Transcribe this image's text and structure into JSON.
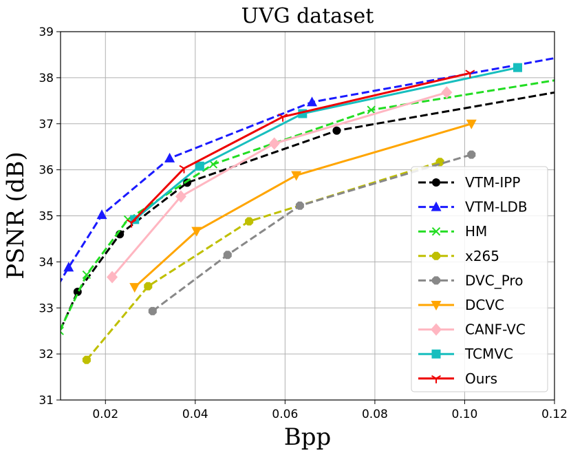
{
  "chart_data": {
    "type": "line",
    "title": "UVG dataset",
    "xlabel": "Bpp",
    "ylabel": "PSNR (dB)",
    "xlim": [
      0.01,
      0.12
    ],
    "ylim": [
      31,
      39
    ],
    "xticks": [
      0.02,
      0.04,
      0.06,
      0.08,
      0.1,
      0.12
    ],
    "xtick_labels": [
      "0.02",
      "0.04",
      "0.06",
      "0.08",
      "0.10",
      "0.12"
    ],
    "yticks": [
      31,
      32,
      33,
      34,
      35,
      36,
      37,
      38,
      39
    ],
    "ytick_labels": [
      "31",
      "32",
      "33",
      "34",
      "35",
      "36",
      "37",
      "38",
      "39"
    ],
    "grid": true,
    "legend_position": "lower-right",
    "series": [
      {
        "name": "VTM-IPP",
        "color": "#000000",
        "dash": "dashed",
        "marker": "circle",
        "x": [
          0.008,
          0.0138,
          0.0232,
          0.0382,
          0.0715,
          0.13
        ],
        "y": [
          32.1,
          33.35,
          34.6,
          35.72,
          36.85,
          37.85
        ],
        "mx": [
          0.0138,
          0.0232,
          0.0382,
          0.0715
        ]
      },
      {
        "name": "VTM-LDB",
        "color": "#1a1aff",
        "dash": "dashed",
        "marker": "triangle-up",
        "x": [
          0.0095,
          0.0118,
          0.0192,
          0.0343,
          0.066,
          0.13
        ],
        "y": [
          33.5,
          33.88,
          35.02,
          36.25,
          37.47,
          38.6
        ],
        "mx": [
          0.0118,
          0.0192,
          0.0343,
          0.066
        ]
      },
      {
        "name": "HM",
        "color": "#22dd22",
        "dash": "dashed",
        "marker": "x",
        "x": [
          0.0098,
          0.0158,
          0.025,
          0.044,
          0.0792,
          0.13
        ],
        "y": [
          32.5,
          33.72,
          34.92,
          36.12,
          37.3,
          38.1
        ],
        "mx": [
          0.0098,
          0.0158,
          0.025,
          0.044,
          0.0792
        ]
      },
      {
        "name": "x265",
        "color": "#bfbf00",
        "dash": "dashed",
        "marker": "octagon",
        "x": [
          0.0158,
          0.0295,
          0.052,
          0.0945
        ],
        "y": [
          31.87,
          33.47,
          34.88,
          36.17
        ],
        "mx": [
          0.0158,
          0.0295,
          0.052,
          0.0945
        ]
      },
      {
        "name": "DVC_Pro",
        "color": "#888888",
        "dash": "dashed",
        "marker": "octagon",
        "x": [
          0.0305,
          0.0472,
          0.0633,
          0.1015
        ],
        "y": [
          32.93,
          34.15,
          35.22,
          36.33
        ],
        "mx": [
          0.0305,
          0.0472,
          0.0633,
          0.1015
        ]
      },
      {
        "name": "DCVC",
        "color": "#ffa500",
        "dash": "solid",
        "marker": "triangle-down",
        "x": [
          0.0265,
          0.0403,
          0.0625,
          0.1015
        ],
        "y": [
          33.45,
          34.67,
          35.88,
          37.0
        ],
        "mx": [
          0.0265,
          0.0403,
          0.0625,
          0.1015
        ]
      },
      {
        "name": "CANF-VC",
        "color": "#ffb6c1",
        "dash": "solid",
        "marker": "diamond",
        "x": [
          0.0215,
          0.0368,
          0.0576,
          0.096
        ],
        "y": [
          33.67,
          35.42,
          36.57,
          37.68
        ],
        "mx": [
          0.0215,
          0.0368,
          0.0576,
          0.096
        ]
      },
      {
        "name": "TCMVC",
        "color": "#17bebe",
        "dash": "solid",
        "marker": "square",
        "x": [
          0.0265,
          0.041,
          0.0639,
          0.1118
        ],
        "y": [
          34.92,
          36.08,
          37.22,
          38.22
        ],
        "mx": [
          0.0265,
          0.041,
          0.0639,
          0.1118
        ]
      },
      {
        "name": "Ours",
        "color": "#ee0000",
        "dash": "solid",
        "marker": "tri",
        "x": [
          0.0258,
          0.0375,
          0.0595,
          0.1012
        ],
        "y": [
          34.85,
          36.03,
          37.15,
          38.1
        ],
        "mx": [
          0.0258,
          0.0375,
          0.0595,
          0.1012
        ]
      }
    ]
  }
}
